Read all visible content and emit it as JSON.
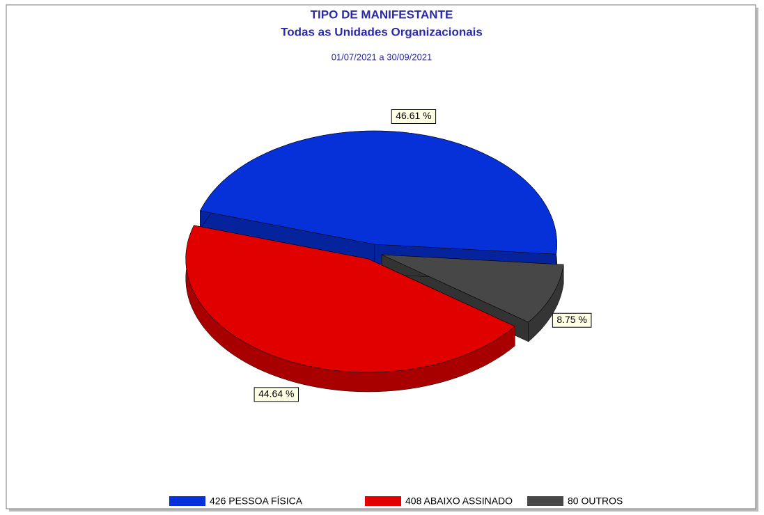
{
  "chart_data": {
    "type": "pie",
    "title": "TIPO DE MANIFESTANTE",
    "subtitle": "Todas as Unidades Organizacionais",
    "period": "01/07/2021 a 30/09/2021",
    "categories": [
      "426 PESSOA FÍSICA",
      "408 ABAIXO ASSINADO",
      "80 OUTROS"
    ],
    "values": [
      46.61,
      44.64,
      8.75
    ],
    "value_labels": [
      "46.61 %",
      "44.64 %",
      "8.75 %"
    ],
    "colors": [
      "#0630d8",
      "#e00000",
      "#474747"
    ],
    "legend": "bottom"
  }
}
